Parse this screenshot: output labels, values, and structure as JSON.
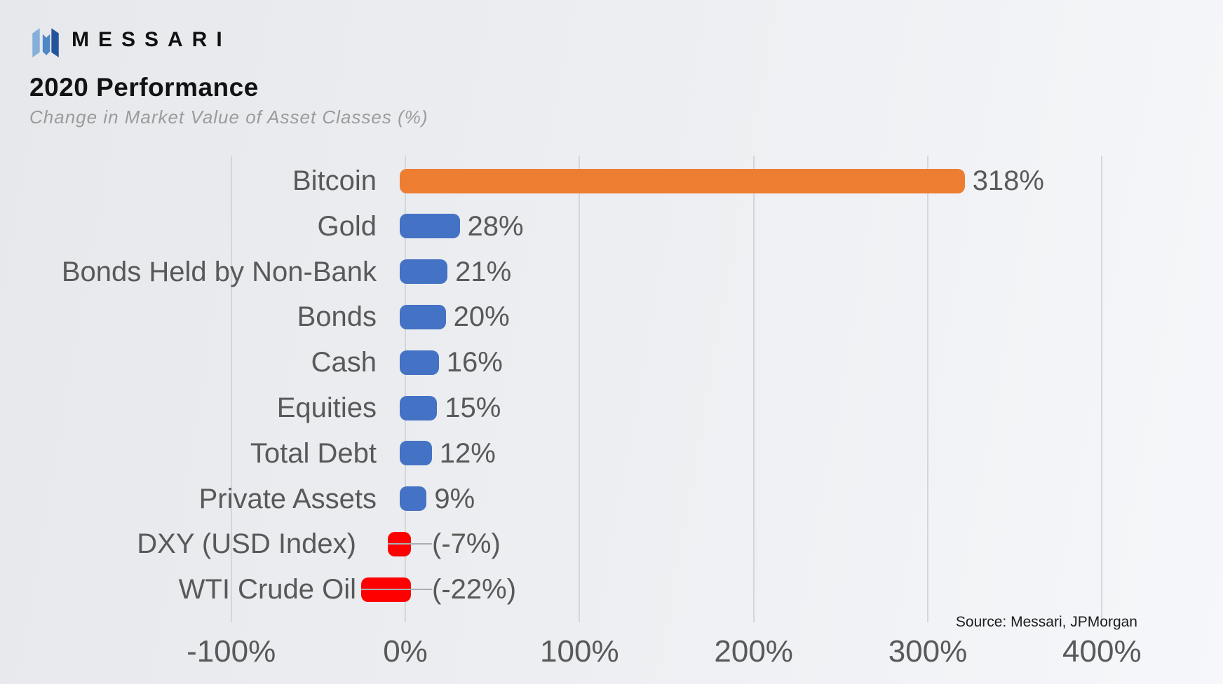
{
  "header": {
    "logo": {
      "brand": "MESSARI",
      "icon": "messari-logo-icon"
    },
    "title": "2020 Performance",
    "subtitle": "Change in Market Value of Asset Classes (%)"
  },
  "source_note": "Source: Messari, JPMorgan",
  "colors": {
    "bar_blue": "#4472C4",
    "bar_orange": "#ED7D31",
    "bar_red": "#FF0000",
    "grid": "#D3D6DB",
    "leader_line": "#A9AEB4",
    "label_text": "#595959",
    "axis_text": "#595959",
    "title_text": "#121212",
    "subtitle_text": "#9B9B9B",
    "source_text": "#1D1D1D",
    "background_left": "#E6E8EC",
    "background_right": "#F5F7FA",
    "logo_blues": [
      "#86AFD9",
      "#4E86C6",
      "#24549B"
    ]
  },
  "chart_data": {
    "type": "bar",
    "orientation": "horizontal",
    "title": "2020 Performance",
    "subtitle": "Change in Market Value of Asset Classes (%)",
    "categories": [
      "Bitcoin",
      "Gold",
      "Bonds Held by Non-Bank",
      "Bonds",
      "Cash",
      "Equities",
      "Total Debt",
      "Private Assets",
      "DXY (USD Index)",
      "WTI Crude Oil"
    ],
    "values": [
      318,
      28,
      21,
      20,
      16,
      15,
      12,
      9,
      -7,
      -22
    ],
    "value_labels": [
      "318%",
      "28%",
      "21%",
      "20%",
      "16%",
      "15%",
      "12%",
      "9%",
      "(-7%)",
      "(-22%)"
    ],
    "bar_color_keys": [
      "bar_orange",
      "bar_blue",
      "bar_blue",
      "bar_blue",
      "bar_blue",
      "bar_blue",
      "bar_blue",
      "bar_blue",
      "bar_red",
      "bar_red"
    ],
    "x_ticks": [
      "-100%",
      "0%",
      "100%",
      "200%",
      "300%",
      "400%"
    ],
    "x_tick_values": [
      -100,
      0,
      100,
      200,
      300,
      400
    ],
    "xlim": [
      -130,
      430
    ],
    "grid": "vertical-only",
    "legend": "none",
    "value_label_position": "outside-end",
    "source": "Source: Messari, JPMorgan"
  }
}
